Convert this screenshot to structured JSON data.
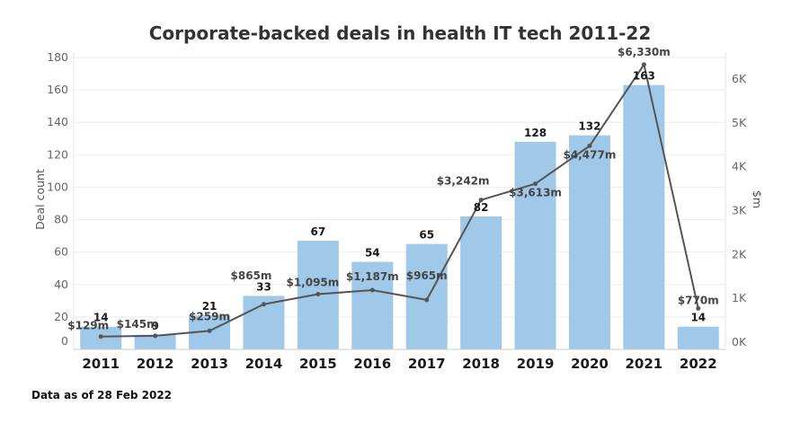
{
  "chart_data": {
    "type": "bar",
    "title": "Corporate-backed deals in health IT tech 2011-22",
    "categories": [
      "2011",
      "2012",
      "2013",
      "2014",
      "2015",
      "2016",
      "2017",
      "2018",
      "2019",
      "2020",
      "2021",
      "2022"
    ],
    "series": [
      {
        "type": "bar",
        "axis": "left",
        "color": "#a0c8e8",
        "values": [
          14,
          9,
          21,
          33,
          67,
          54,
          65,
          82,
          128,
          132,
          163,
          14
        ],
        "labels": [
          "14",
          "9",
          "21",
          "33",
          "67",
          "54",
          "65",
          "82",
          "128",
          "132",
          "163",
          "14"
        ]
      },
      {
        "type": "line",
        "axis": "right",
        "color": "#555555",
        "values": [
          129,
          145,
          259,
          865,
          1095,
          1187,
          965,
          3242,
          3613,
          4477,
          6330,
          770
        ],
        "labels": [
          "$129m",
          "$145m",
          "$259m",
          "$865m",
          "$1,095m",
          "$1,187m",
          "$965m",
          "$3,242m",
          "$3,613m",
          "$4,477m",
          "$6,330m",
          "$770m"
        ]
      }
    ],
    "ylabel": "Deal count",
    "y2label": "$m",
    "ylim": [
      0,
      180
    ],
    "y2lim": [
      0,
      6600
    ],
    "yticks": [
      0,
      20,
      40,
      60,
      80,
      100,
      120,
      140,
      160,
      180
    ],
    "yticklabels": [
      "0",
      "20",
      "40",
      "60",
      "80",
      "100",
      "120",
      "140",
      "160",
      "180"
    ],
    "y2ticks": [
      0,
      1000,
      2000,
      3000,
      4000,
      5000,
      6000
    ],
    "y2ticklabels": [
      "0K",
      "1K",
      "2K",
      "3K",
      "4K",
      "5K",
      "6K"
    ],
    "grid": true,
    "legend": "none"
  },
  "footnote": "Data as of 28 Feb 2022"
}
